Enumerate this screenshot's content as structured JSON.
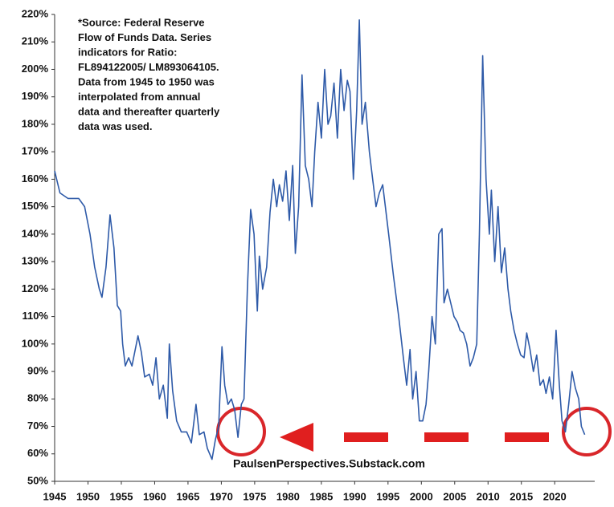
{
  "chart_data": {
    "type": "line",
    "color": "#2e5aa8",
    "note": [
      "*Source: Federal Reserve",
      "Flow of Funds Data.  Series",
      "indicators for Ratio:",
      "FL894122005/ LM893064105.",
      "Data from 1945 to 1950 was",
      "interpolated from annual",
      "data and thereafter quarterly",
      "data was used."
    ],
    "watermark": "PaulsenPerspectives.Substack.com",
    "xlim": [
      1945,
      2026
    ],
    "xticks": [
      1945,
      1950,
      1955,
      1960,
      1965,
      1970,
      1975,
      1980,
      1985,
      1990,
      1995,
      2000,
      2005,
      2010,
      2015,
      2020
    ],
    "ylim": [
      50,
      220
    ],
    "yticks": [
      {
        "value": 50,
        "label": "50%"
      },
      {
        "value": 60,
        "label": "60%"
      },
      {
        "value": 70,
        "label": "70%"
      },
      {
        "value": 80,
        "label": "80%"
      },
      {
        "value": 90,
        "label": "90%"
      },
      {
        "value": 100,
        "label": "100%"
      },
      {
        "value": 110,
        "label": "110%"
      },
      {
        "value": 120,
        "label": "120%"
      },
      {
        "value": 130,
        "label": "130%"
      },
      {
        "value": 140,
        "label": "140%"
      },
      {
        "value": 150,
        "label": "150%"
      },
      {
        "value": 160,
        "label": "160%"
      },
      {
        "value": 170,
        "label": "170%"
      },
      {
        "value": 180,
        "label": "180%"
      },
      {
        "value": 190,
        "label": "190%"
      },
      {
        "value": 200,
        "label": "200%"
      },
      {
        "value": 210,
        "label": "210%"
      },
      {
        "value": 220,
        "label": "220%"
      }
    ],
    "grid": false,
    "x": [
      1945.0,
      1945.8,
      1947.0,
      1948.6,
      1949.5,
      1950.3,
      1951.0,
      1951.7,
      1952.1,
      1952.7,
      1953.3,
      1953.9,
      1954.4,
      1954.9,
      1955.2,
      1955.6,
      1956.1,
      1956.6,
      1957.0,
      1957.5,
      1958.0,
      1958.5,
      1959.2,
      1959.7,
      1960.2,
      1960.7,
      1961.3,
      1961.9,
      1962.2,
      1962.7,
      1963.3,
      1964.0,
      1964.8,
      1965.5,
      1966.2,
      1966.7,
      1967.4,
      1967.9,
      1968.6,
      1969.1,
      1969.6,
      1970.1,
      1970.5,
      1971.0,
      1971.5,
      1972.0,
      1972.5,
      1973.0,
      1973.4,
      1973.9,
      1974.4,
      1974.9,
      1975.4,
      1975.7,
      1976.2,
      1976.8,
      1977.3,
      1977.8,
      1978.3,
      1978.7,
      1979.2,
      1979.7,
      1980.2,
      1980.7,
      1981.1,
      1981.6,
      1982.1,
      1982.6,
      1983.1,
      1983.6,
      1984.0,
      1984.5,
      1985.0,
      1985.5,
      1986.0,
      1986.4,
      1986.9,
      1987.4,
      1987.9,
      1988.4,
      1988.9,
      1989.3,
      1989.8,
      1990.3,
      1990.7,
      1991.1,
      1991.6,
      1992.2,
      1992.7,
      1993.2,
      1993.7,
      1994.2,
      1994.6,
      1995.1,
      1995.8,
      1996.6,
      1997.3,
      1997.8,
      1998.3,
      1998.7,
      1999.2,
      1999.7,
      2000.2,
      2000.7,
      2001.1,
      2001.6,
      2002.1,
      2002.6,
      2003.1,
      2003.4,
      2003.9,
      2004.4,
      2004.9,
      2005.4,
      2005.8,
      2006.3,
      2006.8,
      2007.3,
      2007.8,
      2008.3,
      2008.7,
      2009.2,
      2009.7,
      2010.2,
      2010.5,
      2011.0,
      2011.5,
      2012.0,
      2012.5,
      2013.0,
      2013.4,
      2013.9,
      2014.4,
      2014.9,
      2015.4,
      2015.8,
      2016.3,
      2016.8,
      2017.3,
      2017.8,
      2018.3,
      2018.7,
      2019.2,
      2019.7,
      2020.2,
      2020.7,
      2021.1,
      2021.6,
      2022.1,
      2022.6,
      2023.1,
      2023.6,
      2024.0,
      2024.5
    ],
    "values": [
      163,
      155,
      153,
      153,
      150,
      140,
      128,
      120,
      117,
      128,
      147,
      135,
      114,
      112,
      100,
      92,
      95,
      92,
      97,
      103,
      97,
      88,
      89,
      85,
      95,
      80,
      85,
      73,
      100,
      83,
      72,
      68,
      68,
      64,
      78,
      67,
      68,
      62,
      58,
      65,
      70,
      99,
      85,
      78,
      80,
      76,
      66,
      78,
      80,
      120,
      149,
      140,
      112,
      132,
      120,
      128,
      148,
      160,
      150,
      158,
      152,
      163,
      145,
      165,
      133,
      150,
      198,
      165,
      160,
      150,
      170,
      188,
      175,
      200,
      180,
      183,
      195,
      175,
      200,
      185,
      196,
      192,
      160,
      185,
      218,
      180,
      188,
      170,
      160,
      150,
      155,
      158,
      150,
      140,
      125,
      110,
      95,
      85,
      98,
      80,
      90,
      72,
      72,
      78,
      90,
      110,
      100,
      140,
      142,
      115,
      120,
      115,
      110,
      108,
      105,
      104,
      100,
      92,
      95,
      100,
      140,
      205,
      160,
      140,
      156,
      130,
      150,
      126,
      135,
      120,
      112,
      105,
      100,
      96,
      95,
      104,
      98,
      90,
      96,
      85,
      87,
      82,
      88,
      80,
      105,
      85,
      72,
      68,
      78,
      90,
      84,
      80,
      70,
      67
    ]
  }
}
